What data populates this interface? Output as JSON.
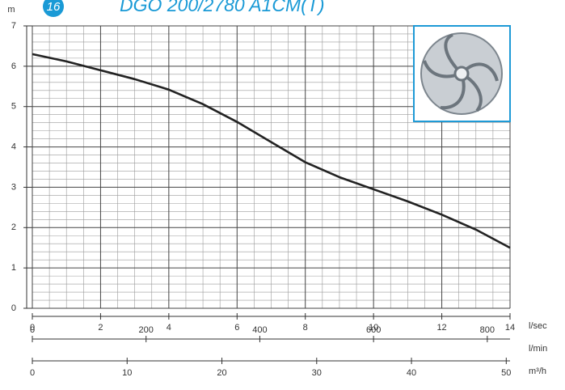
{
  "chart_data": {
    "type": "line",
    "title": "DGO 200/2780 A1CM(T)",
    "badge": "16",
    "ylabel": "m",
    "xlabel": "l/sec",
    "x": [
      0,
      1,
      2,
      3,
      4,
      5,
      6,
      7,
      8,
      9,
      10,
      11,
      12,
      13,
      14
    ],
    "series": [
      {
        "color": "#222222",
        "values": [
          6.3,
          6.12,
          5.9,
          5.68,
          5.42,
          5.06,
          4.62,
          4.12,
          3.62,
          3.25,
          2.95,
          2.65,
          2.32,
          1.95,
          1.5
        ]
      }
    ],
    "xlim": [
      0,
      14
    ],
    "xticks": [
      0,
      2,
      4,
      6,
      8,
      10,
      12,
      14
    ],
    "ylim": [
      0,
      7
    ],
    "yticks": [
      0,
      1,
      2,
      3,
      4,
      5,
      6,
      7
    ],
    "x2label": "l/min",
    "x2lim": [
      0,
      840
    ],
    "x2ticks": [
      0,
      200,
      400,
      600,
      800
    ],
    "x3label": "m³/h",
    "x3lim": [
      0,
      50.4
    ],
    "x3ticks": [
      0,
      10,
      20,
      30,
      40,
      50
    ],
    "grid": true
  }
}
